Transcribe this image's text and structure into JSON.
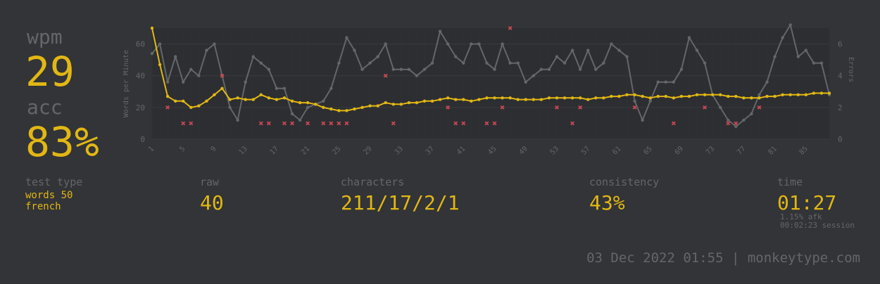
{
  "stats": {
    "wpm_label": "wpm",
    "wpm_value": "29",
    "acc_label": "acc",
    "acc_value": "83%",
    "test_type_label": "test type",
    "test_type_line1": "words 50",
    "test_type_line2": "french",
    "raw_label": "raw",
    "raw_value": "40",
    "characters_label": "characters",
    "characters_value": "211/17/2/1",
    "consistency_label": "consistency",
    "consistency_value": "43%",
    "time_label": "time",
    "time_value": "01:27",
    "afk_text": "1.15% afk",
    "session_text": "00:02:23 session"
  },
  "footer": {
    "text": "03 Dec 2022 01:55 | monkeytype.com"
  },
  "colors": {
    "background": "#323437",
    "plot_bg": "#2c2e31",
    "main": "#e2b714",
    "sub": "#646669",
    "error": "#ca4754"
  },
  "chart_data": {
    "type": "line",
    "ylabel": "Words per Minute",
    "y2label": "Errors",
    "ylim": [
      0,
      70
    ],
    "y2lim": [
      0,
      7
    ],
    "yticks": [
      0,
      20,
      40,
      60
    ],
    "y2ticks": [
      0,
      2,
      4,
      6
    ],
    "x": [
      1,
      2,
      3,
      4,
      5,
      6,
      7,
      8,
      9,
      10,
      11,
      12,
      13,
      14,
      15,
      16,
      17,
      18,
      19,
      20,
      21,
      22,
      23,
      24,
      25,
      26,
      27,
      28,
      29,
      30,
      31,
      32,
      33,
      34,
      35,
      36,
      37,
      38,
      39,
      40,
      41,
      42,
      43,
      44,
      45,
      46,
      47,
      48,
      49,
      50,
      51,
      52,
      53,
      54,
      55,
      56,
      57,
      58,
      59,
      60,
      61,
      62,
      63,
      64,
      65,
      66,
      67,
      68,
      69,
      70,
      71,
      72,
      73,
      74,
      75,
      76,
      77,
      78,
      79,
      80,
      81,
      82,
      83,
      84,
      85,
      86,
      87,
      88
    ],
    "xticks": [
      1,
      5,
      9,
      13,
      17,
      21,
      25,
      29,
      33,
      37,
      41,
      45,
      49,
      53,
      57,
      61,
      65,
      69,
      73,
      77,
      81,
      85
    ],
    "grid": true,
    "legend": "none",
    "series": [
      {
        "name": "wpm",
        "color": "#e2b714",
        "values": [
          70,
          47,
          27,
          24,
          24,
          20,
          21,
          24,
          28,
          32,
          25,
          26,
          25,
          25,
          28,
          26,
          25,
          26,
          24,
          23,
          23,
          22,
          20,
          19,
          18,
          18,
          19,
          20,
          21,
          21,
          23,
          22,
          22,
          23,
          23,
          24,
          24,
          25,
          26,
          25,
          25,
          24,
          25,
          26,
          26,
          26,
          26,
          25,
          25,
          25,
          25,
          26,
          26,
          26,
          26,
          26,
          25,
          26,
          26,
          27,
          27,
          28,
          28,
          27,
          26,
          27,
          27,
          26,
          27,
          27,
          28,
          28,
          28,
          28,
          27,
          27,
          26,
          26,
          26,
          27,
          27,
          28,
          28,
          28,
          28,
          29,
          29,
          29
        ]
      },
      {
        "name": "raw",
        "color": "#646669",
        "values": [
          54,
          60,
          36,
          52,
          36,
          44,
          40,
          56,
          60,
          40,
          20,
          12,
          36,
          52,
          48,
          44,
          32,
          32,
          16,
          12,
          20,
          22,
          24,
          32,
          48,
          64,
          56,
          44,
          48,
          52,
          60,
          44,
          44,
          44,
          40,
          44,
          48,
          68,
          60,
          52,
          48,
          60,
          60,
          48,
          44,
          60,
          48,
          48,
          36,
          40,
          44,
          44,
          52,
          48,
          56,
          44,
          56,
          44,
          48,
          60,
          56,
          52,
          24,
          12,
          24,
          36,
          36,
          36,
          44,
          64,
          56,
          48,
          28,
          20,
          12,
          8,
          12,
          16,
          28,
          36,
          52,
          64,
          72,
          52,
          56,
          48,
          48,
          28
        ]
      }
    ],
    "errors": [
      {
        "x": 3,
        "y": 2
      },
      {
        "x": 5,
        "y": 1
      },
      {
        "x": 6,
        "y": 1
      },
      {
        "x": 10,
        "y": 4
      },
      {
        "x": 15,
        "y": 1
      },
      {
        "x": 16,
        "y": 1
      },
      {
        "x": 18,
        "y": 1
      },
      {
        "x": 19,
        "y": 1
      },
      {
        "x": 21,
        "y": 1
      },
      {
        "x": 23,
        "y": 1
      },
      {
        "x": 24,
        "y": 1
      },
      {
        "x": 25,
        "y": 1
      },
      {
        "x": 26,
        "y": 1
      },
      {
        "x": 31,
        "y": 4
      },
      {
        "x": 32,
        "y": 1
      },
      {
        "x": 39,
        "y": 2
      },
      {
        "x": 40,
        "y": 1
      },
      {
        "x": 41,
        "y": 1
      },
      {
        "x": 44,
        "y": 1
      },
      {
        "x": 45,
        "y": 1
      },
      {
        "x": 46,
        "y": 2
      },
      {
        "x": 47,
        "y": 7
      },
      {
        "x": 53,
        "y": 2
      },
      {
        "x": 55,
        "y": 1
      },
      {
        "x": 56,
        "y": 2
      },
      {
        "x": 63,
        "y": 2
      },
      {
        "x": 68,
        "y": 1
      },
      {
        "x": 72,
        "y": 2
      },
      {
        "x": 75,
        "y": 1
      },
      {
        "x": 76,
        "y": 1
      },
      {
        "x": 79,
        "y": 2
      }
    ]
  }
}
